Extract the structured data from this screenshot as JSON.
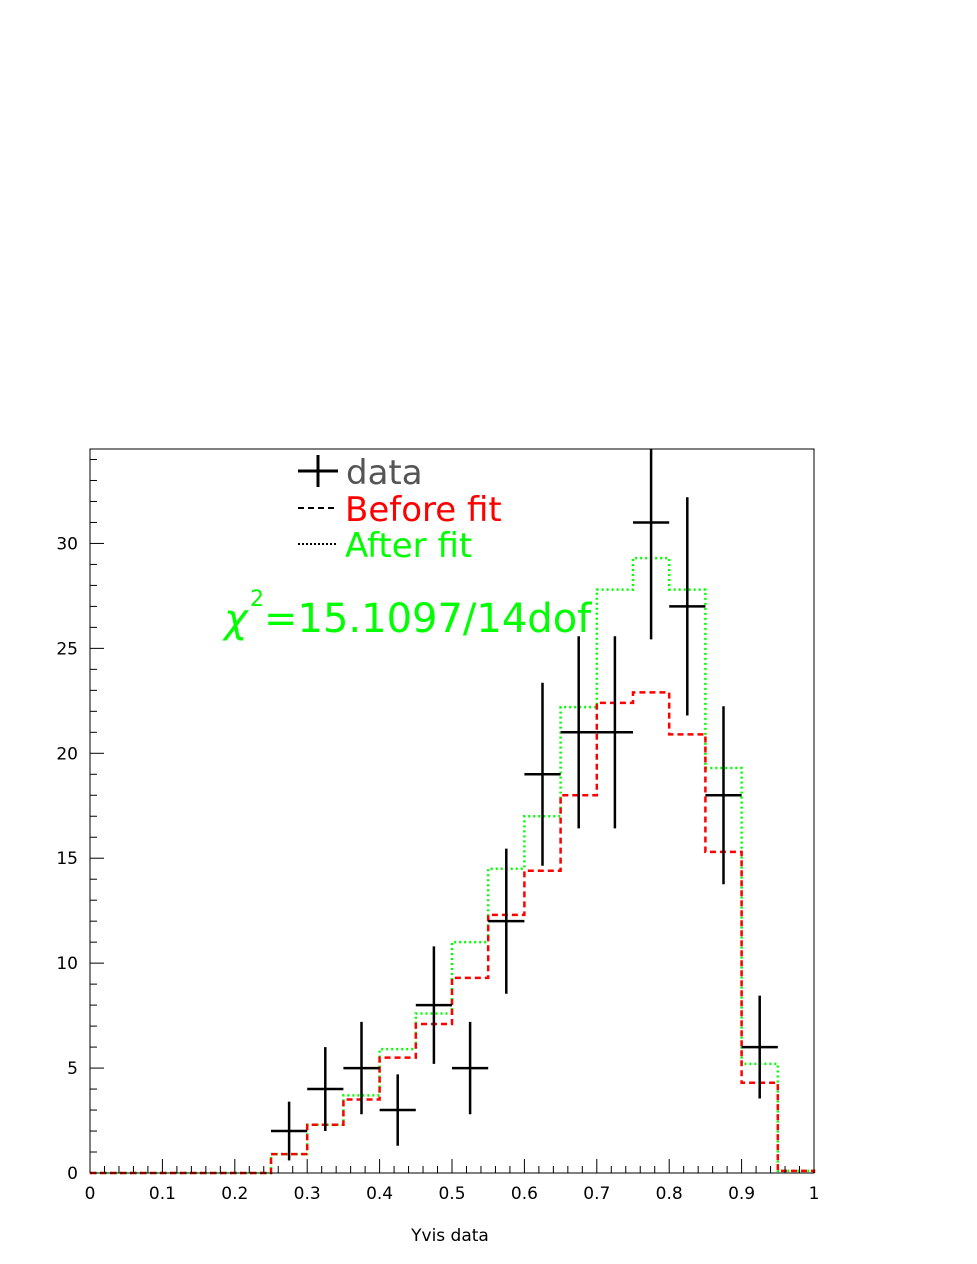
{
  "chart_data": {
    "type": "histogram",
    "title": "",
    "xlabel": "Yvis data",
    "ylabel": "",
    "xlim": [
      0,
      1
    ],
    "ylim": [
      0,
      34.5
    ],
    "x_ticks": [
      0,
      0.1,
      0.2,
      0.3,
      0.4,
      0.5,
      0.6,
      0.7,
      0.8,
      0.9,
      1
    ],
    "x_tick_labels": [
      "0",
      "0.1",
      "0.2",
      "0.3",
      "0.4",
      "0.5",
      "0.6",
      "0.7",
      "0.8",
      "0.9",
      "1"
    ],
    "y_ticks": [
      0,
      5,
      10,
      15,
      20,
      25,
      30
    ],
    "y_tick_labels": [
      "0",
      "5",
      "10",
      "15",
      "20",
      "25",
      "30"
    ],
    "bin_edges": [
      0,
      0.05,
      0.1,
      0.15,
      0.2,
      0.25,
      0.3,
      0.35,
      0.4,
      0.45,
      0.5,
      0.55,
      0.6,
      0.65,
      0.7,
      0.75,
      0.8,
      0.85,
      0.9,
      0.95,
      1.0
    ],
    "series": [
      {
        "name": "data",
        "style": "points-with-errors",
        "color": "#000000",
        "points": [
          {
            "x": 0.275,
            "y": 2,
            "err": 1.4
          },
          {
            "x": 0.325,
            "y": 4,
            "err": 2.0
          },
          {
            "x": 0.375,
            "y": 5,
            "err": 2.2
          },
          {
            "x": 0.425,
            "y": 3,
            "err": 1.7
          },
          {
            "x": 0.475,
            "y": 8,
            "err": 2.8
          },
          {
            "x": 0.525,
            "y": 5,
            "err": 2.2
          },
          {
            "x": 0.575,
            "y": 12,
            "err": 3.46
          },
          {
            "x": 0.625,
            "y": 19,
            "err": 4.36
          },
          {
            "x": 0.675,
            "y": 21,
            "err": 4.58
          },
          {
            "x": 0.725,
            "y": 21,
            "err": 4.58
          },
          {
            "x": 0.775,
            "y": 31,
            "err": 5.57
          },
          {
            "x": 0.825,
            "y": 27,
            "err": 5.2
          },
          {
            "x": 0.875,
            "y": 18,
            "err": 4.24
          },
          {
            "x": 0.925,
            "y": 6,
            "err": 2.45
          }
        ]
      },
      {
        "name": "Before fit",
        "style": "dashed-step",
        "color": "#ff0000",
        "values": [
          0,
          0,
          0,
          0,
          0,
          0.9,
          2.3,
          3.5,
          5.5,
          7.1,
          9.3,
          12.3,
          14.4,
          18.0,
          22.4,
          22.9,
          20.9,
          15.3,
          4.3,
          0.1
        ]
      },
      {
        "name": "After fit",
        "style": "dotted-step",
        "color": "#00ff00",
        "values": [
          0,
          0,
          0,
          0,
          0,
          0.9,
          2.3,
          3.7,
          5.9,
          7.6,
          11.0,
          14.5,
          17.0,
          22.2,
          27.8,
          29.3,
          27.8,
          19.3,
          5.2,
          0.1
        ]
      }
    ],
    "legend": {
      "position": "top-left",
      "entries": [
        {
          "label": "data",
          "color": "#555555",
          "marker": "cross"
        },
        {
          "label": "Before fit",
          "color": "#ff0000",
          "marker": "dashed"
        },
        {
          "label": "After fit",
          "color": "#00ff00",
          "marker": "dotted"
        }
      ]
    },
    "annotation": {
      "symbol": "χ",
      "superscript": "2",
      "text": "=15.1097/14dof",
      "color": "#00ff00"
    }
  }
}
